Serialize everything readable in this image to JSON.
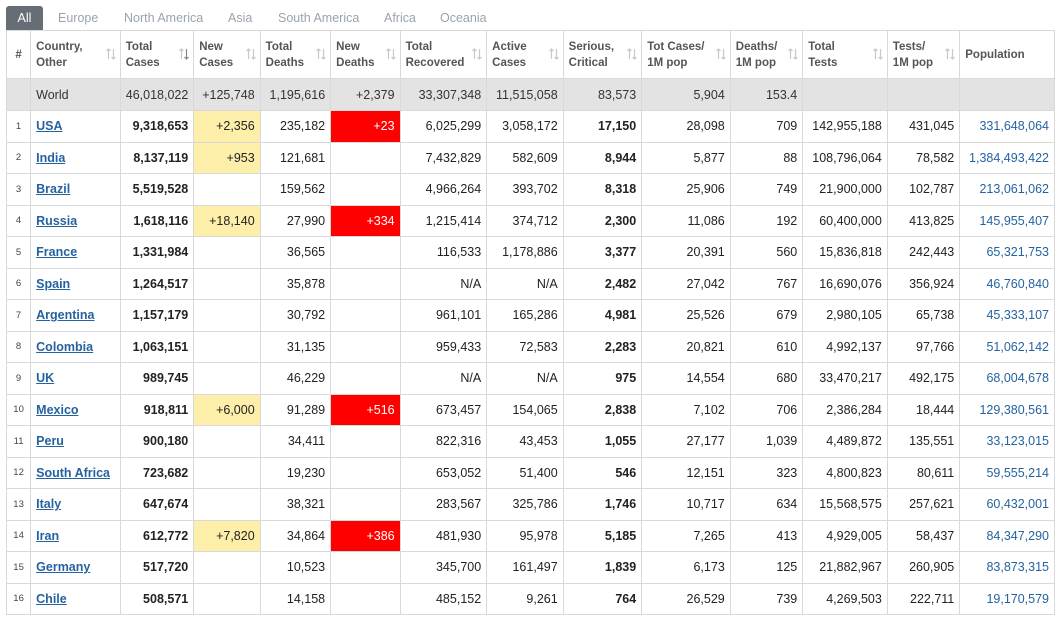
{
  "tabs": [
    "All",
    "Europe",
    "North America",
    "Asia",
    "South America",
    "Africa",
    "Oceania"
  ],
  "headers": [
    "#",
    "Country,\nOther",
    "Total\nCases",
    "New\nCases",
    "Total\nDeaths",
    "New\nDeaths",
    "Total\nRecovered",
    "Active\nCases",
    "Serious,\nCritical",
    "Tot Cases/\n1M pop",
    "Deaths/\n1M pop",
    "Total\nTests",
    "Tests/\n1M pop",
    "Population"
  ],
  "world": {
    "country": "World",
    "total_cases": "46,018,022",
    "new_cases": "+125,748",
    "total_deaths": "1,195,616",
    "new_deaths": "+2,379",
    "total_recovered": "33,307,348",
    "active_cases": "11,515,058",
    "serious": "83,573",
    "cases_per_m": "5,904",
    "deaths_per_m": "153.4",
    "total_tests": "",
    "tests_per_m": "",
    "population": ""
  },
  "rows": [
    {
      "idx": "1",
      "country": "USA",
      "total_cases": "9,318,653",
      "new_cases": "+2,356",
      "total_deaths": "235,182",
      "new_deaths": "+23",
      "total_recovered": "6,025,299",
      "active_cases": "3,058,172",
      "serious": "17,150",
      "cases_per_m": "28,098",
      "deaths_per_m": "709",
      "total_tests": "142,955,188",
      "tests_per_m": "431,045",
      "population": "331,648,064"
    },
    {
      "idx": "2",
      "country": "India",
      "total_cases": "8,137,119",
      "new_cases": "+953",
      "total_deaths": "121,681",
      "new_deaths": "",
      "total_recovered": "7,432,829",
      "active_cases": "582,609",
      "serious": "8,944",
      "cases_per_m": "5,877",
      "deaths_per_m": "88",
      "total_tests": "108,796,064",
      "tests_per_m": "78,582",
      "population": "1,384,493,422"
    },
    {
      "idx": "3",
      "country": "Brazil",
      "total_cases": "5,519,528",
      "new_cases": "",
      "total_deaths": "159,562",
      "new_deaths": "",
      "total_recovered": "4,966,264",
      "active_cases": "393,702",
      "serious": "8,318",
      "cases_per_m": "25,906",
      "deaths_per_m": "749",
      "total_tests": "21,900,000",
      "tests_per_m": "102,787",
      "population": "213,061,062"
    },
    {
      "idx": "4",
      "country": "Russia",
      "total_cases": "1,618,116",
      "new_cases": "+18,140",
      "total_deaths": "27,990",
      "new_deaths": "+334",
      "total_recovered": "1,215,414",
      "active_cases": "374,712",
      "serious": "2,300",
      "cases_per_m": "11,086",
      "deaths_per_m": "192",
      "total_tests": "60,400,000",
      "tests_per_m": "413,825",
      "population": "145,955,407"
    },
    {
      "idx": "5",
      "country": "France",
      "total_cases": "1,331,984",
      "new_cases": "",
      "total_deaths": "36,565",
      "new_deaths": "",
      "total_recovered": "116,533",
      "active_cases": "1,178,886",
      "serious": "3,377",
      "cases_per_m": "20,391",
      "deaths_per_m": "560",
      "total_tests": "15,836,818",
      "tests_per_m": "242,443",
      "population": "65,321,753"
    },
    {
      "idx": "6",
      "country": "Spain",
      "total_cases": "1,264,517",
      "new_cases": "",
      "total_deaths": "35,878",
      "new_deaths": "",
      "total_recovered": "N/A",
      "active_cases": "N/A",
      "serious": "2,482",
      "cases_per_m": "27,042",
      "deaths_per_m": "767",
      "total_tests": "16,690,076",
      "tests_per_m": "356,924",
      "population": "46,760,840"
    },
    {
      "idx": "7",
      "country": "Argentina",
      "total_cases": "1,157,179",
      "new_cases": "",
      "total_deaths": "30,792",
      "new_deaths": "",
      "total_recovered": "961,101",
      "active_cases": "165,286",
      "serious": "4,981",
      "cases_per_m": "25,526",
      "deaths_per_m": "679",
      "total_tests": "2,980,105",
      "tests_per_m": "65,738",
      "population": "45,333,107"
    },
    {
      "idx": "8",
      "country": "Colombia",
      "total_cases": "1,063,151",
      "new_cases": "",
      "total_deaths": "31,135",
      "new_deaths": "",
      "total_recovered": "959,433",
      "active_cases": "72,583",
      "serious": "2,283",
      "cases_per_m": "20,821",
      "deaths_per_m": "610",
      "total_tests": "4,992,137",
      "tests_per_m": "97,766",
      "population": "51,062,142"
    },
    {
      "idx": "9",
      "country": "UK",
      "total_cases": "989,745",
      "new_cases": "",
      "total_deaths": "46,229",
      "new_deaths": "",
      "total_recovered": "N/A",
      "active_cases": "N/A",
      "serious": "975",
      "cases_per_m": "14,554",
      "deaths_per_m": "680",
      "total_tests": "33,470,217",
      "tests_per_m": "492,175",
      "population": "68,004,678"
    },
    {
      "idx": "10",
      "country": "Mexico",
      "total_cases": "918,811",
      "new_cases": "+6,000",
      "total_deaths": "91,289",
      "new_deaths": "+516",
      "total_recovered": "673,457",
      "active_cases": "154,065",
      "serious": "2,838",
      "cases_per_m": "7,102",
      "deaths_per_m": "706",
      "total_tests": "2,386,284",
      "tests_per_m": "18,444",
      "population": "129,380,561"
    },
    {
      "idx": "11",
      "country": "Peru",
      "total_cases": "900,180",
      "new_cases": "",
      "total_deaths": "34,411",
      "new_deaths": "",
      "total_recovered": "822,316",
      "active_cases": "43,453",
      "serious": "1,055",
      "cases_per_m": "27,177",
      "deaths_per_m": "1,039",
      "total_tests": "4,489,872",
      "tests_per_m": "135,551",
      "population": "33,123,015"
    },
    {
      "idx": "12",
      "country": "South Africa",
      "total_cases": "723,682",
      "new_cases": "",
      "total_deaths": "19,230",
      "new_deaths": "",
      "total_recovered": "653,052",
      "active_cases": "51,400",
      "serious": "546",
      "cases_per_m": "12,151",
      "deaths_per_m": "323",
      "total_tests": "4,800,823",
      "tests_per_m": "80,611",
      "population": "59,555,214"
    },
    {
      "idx": "13",
      "country": "Italy",
      "total_cases": "647,674",
      "new_cases": "",
      "total_deaths": "38,321",
      "new_deaths": "",
      "total_recovered": "283,567",
      "active_cases": "325,786",
      "serious": "1,746",
      "cases_per_m": "10,717",
      "deaths_per_m": "634",
      "total_tests": "15,568,575",
      "tests_per_m": "257,621",
      "population": "60,432,001"
    },
    {
      "idx": "14",
      "country": "Iran",
      "total_cases": "612,772",
      "new_cases": "+7,820",
      "total_deaths": "34,864",
      "new_deaths": "+386",
      "total_recovered": "481,930",
      "active_cases": "95,978",
      "serious": "5,185",
      "cases_per_m": "7,265",
      "deaths_per_m": "413",
      "total_tests": "4,929,005",
      "tests_per_m": "58,437",
      "population": "84,347,290"
    },
    {
      "idx": "15",
      "country": "Germany",
      "total_cases": "517,720",
      "new_cases": "",
      "total_deaths": "10,523",
      "new_deaths": "",
      "total_recovered": "345,700",
      "active_cases": "161,497",
      "serious": "1,839",
      "cases_per_m": "6,173",
      "deaths_per_m": "125",
      "total_tests": "21,882,967",
      "tests_per_m": "260,905",
      "population": "83,873,315"
    },
    {
      "idx": "16",
      "country": "Chile",
      "total_cases": "508,571",
      "new_cases": "",
      "total_deaths": "14,158",
      "new_deaths": "",
      "total_recovered": "485,152",
      "active_cases": "9,261",
      "serious": "764",
      "cases_per_m": "26,529",
      "deaths_per_m": "739",
      "total_tests": "4,269,503",
      "tests_per_m": "222,711",
      "population": "19,170,579"
    }
  ]
}
